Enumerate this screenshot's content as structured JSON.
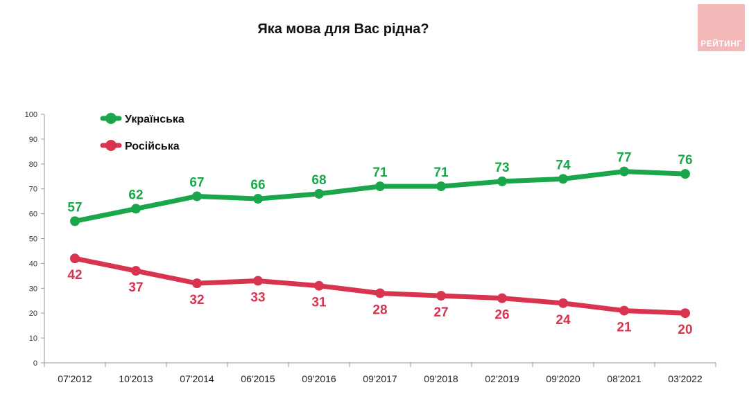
{
  "logo": {
    "text": "РЕЙТИНГ",
    "color": "#f4b8b8"
  },
  "chart_data": {
    "type": "line",
    "title": "Яка мова для Вас рідна?",
    "categories": [
      "07'2012",
      "10'2013",
      "07'2014",
      "06'2015",
      "09'2016",
      "09'2017",
      "09'2018",
      "02'2019",
      "09'2020",
      "08'2021",
      "03'2022"
    ],
    "ylim": [
      0,
      100
    ],
    "yticks": [
      0,
      10,
      20,
      30,
      40,
      50,
      60,
      70,
      80,
      90,
      100
    ],
    "grid": false,
    "legend_position": "top-left",
    "series": [
      {
        "name": "Українська",
        "color": "#1aa64a",
        "label_position": "above",
        "values": [
          57,
          62,
          67,
          66,
          68,
          71,
          71,
          73,
          74,
          77,
          76
        ]
      },
      {
        "name": "Російська",
        "color": "#d9344f",
        "label_position": "below",
        "values": [
          42,
          37,
          32,
          33,
          31,
          28,
          27,
          26,
          24,
          21,
          20
        ]
      }
    ]
  }
}
